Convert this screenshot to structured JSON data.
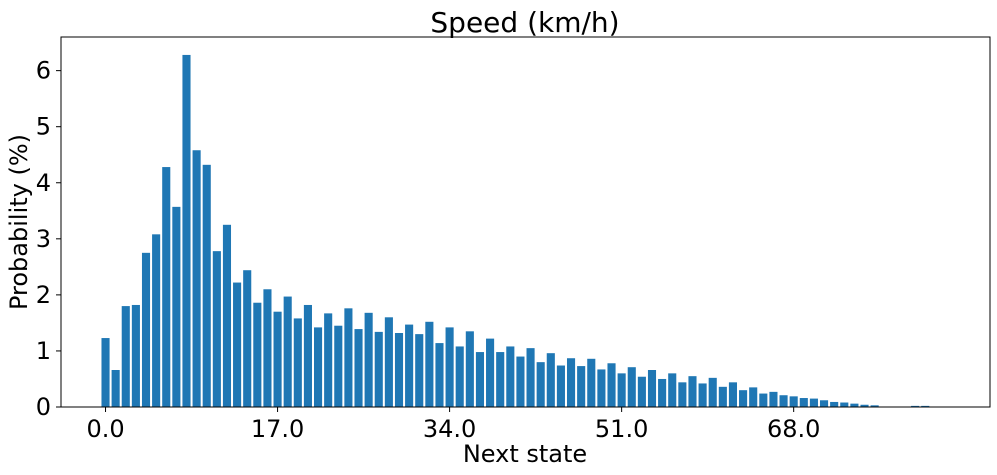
{
  "chart_data": {
    "type": "bar",
    "title": "Speed (km/h)",
    "xlabel": "Next state",
    "ylabel": "Probability (%)",
    "bar_color": "#1f77b4",
    "xlim": [
      -4.4,
      87.4
    ],
    "ylim": [
      0,
      6.6
    ],
    "xticks": [
      {
        "value": 0,
        "label": "0.0"
      },
      {
        "value": 17,
        "label": "17.0"
      },
      {
        "value": 34,
        "label": "34.0"
      },
      {
        "value": 51,
        "label": "51.0"
      },
      {
        "value": 68,
        "label": "68.0"
      }
    ],
    "yticks": [
      {
        "value": 0,
        "label": "0"
      },
      {
        "value": 1,
        "label": "1"
      },
      {
        "value": 2,
        "label": "2"
      },
      {
        "value": 3,
        "label": "3"
      },
      {
        "value": 4,
        "label": "4"
      },
      {
        "value": 5,
        "label": "5"
      },
      {
        "value": 6,
        "label": "6"
      }
    ],
    "grid": false,
    "x": [
      0,
      1,
      2,
      3,
      4,
      5,
      6,
      7,
      8,
      9,
      10,
      11,
      12,
      13,
      14,
      15,
      16,
      17,
      18,
      19,
      20,
      21,
      22,
      23,
      24,
      25,
      26,
      27,
      28,
      29,
      30,
      31,
      32,
      33,
      34,
      35,
      36,
      37,
      38,
      39,
      40,
      41,
      42,
      43,
      44,
      45,
      46,
      47,
      48,
      49,
      50,
      51,
      52,
      53,
      54,
      55,
      56,
      57,
      58,
      59,
      60,
      61,
      62,
      63,
      64,
      65,
      66,
      67,
      68,
      69,
      70,
      71,
      72,
      73,
      74,
      75,
      76,
      77,
      78,
      79,
      80,
      81,
      82
    ],
    "values": [
      1.23,
      0.66,
      1.8,
      1.82,
      2.75,
      3.08,
      4.28,
      3.57,
      6.28,
      4.58,
      4.32,
      2.78,
      3.25,
      2.22,
      2.44,
      1.86,
      2.1,
      1.7,
      1.97,
      1.58,
      1.82,
      1.42,
      1.67,
      1.45,
      1.76,
      1.39,
      1.68,
      1.34,
      1.6,
      1.32,
      1.47,
      1.3,
      1.52,
      1.14,
      1.42,
      1.08,
      1.35,
      0.98,
      1.22,
      0.98,
      1.08,
      0.9,
      1.05,
      0.8,
      0.96,
      0.74,
      0.87,
      0.73,
      0.86,
      0.67,
      0.78,
      0.6,
      0.71,
      0.54,
      0.66,
      0.5,
      0.6,
      0.44,
      0.55,
      0.42,
      0.52,
      0.36,
      0.44,
      0.3,
      0.35,
      0.24,
      0.27,
      0.21,
      0.19,
      0.16,
      0.15,
      0.12,
      0.09,
      0.08,
      0.06,
      0.04,
      0.03,
      0.0,
      0.0,
      0.0,
      0.02,
      0.02,
      0.0
    ]
  }
}
